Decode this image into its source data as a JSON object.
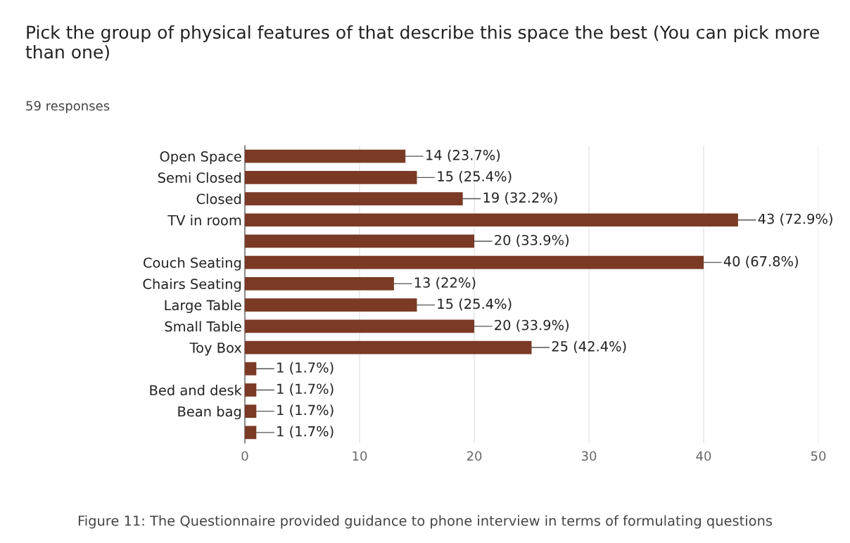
{
  "chart_data": {
    "type": "bar",
    "orientation": "horizontal",
    "title": "Pick the group of physical features of that describe this space the best (You can pick more than one)",
    "subtitle": "59 responses",
    "categories": [
      "Open Space",
      "Semi Closed",
      "Closed",
      "TV in room",
      null,
      "Couch Seating",
      "Chairs Seating",
      "Large Table",
      "Small Table",
      "Toy Box",
      null,
      "Bed and desk",
      "Bean bag",
      null
    ],
    "values": [
      14,
      15,
      19,
      43,
      20,
      40,
      13,
      15,
      20,
      25,
      1,
      1,
      1,
      1
    ],
    "value_labels": [
      "14 (23.7%)",
      "15 (25.4%)",
      "19 (32.2%)",
      "43 (72.9%)",
      "20 (33.9%)",
      "40 (67.8%)",
      "13 (22%)",
      "15 (25.4%)",
      "20 (33.9%)",
      "25 (42.4%)",
      "1 (1.7%)",
      "1 (1.7%)",
      "1 (1.7%)",
      "1 (1.7%)"
    ],
    "color": "#7b3a26",
    "xlim": [
      0,
      50
    ],
    "xticks": [
      0,
      10,
      20,
      30,
      40,
      50
    ],
    "grid": "x",
    "annotations": [
      "Figure 11: The Questionnaire provided guidance to phone interview in terms of formulating questions"
    ]
  }
}
